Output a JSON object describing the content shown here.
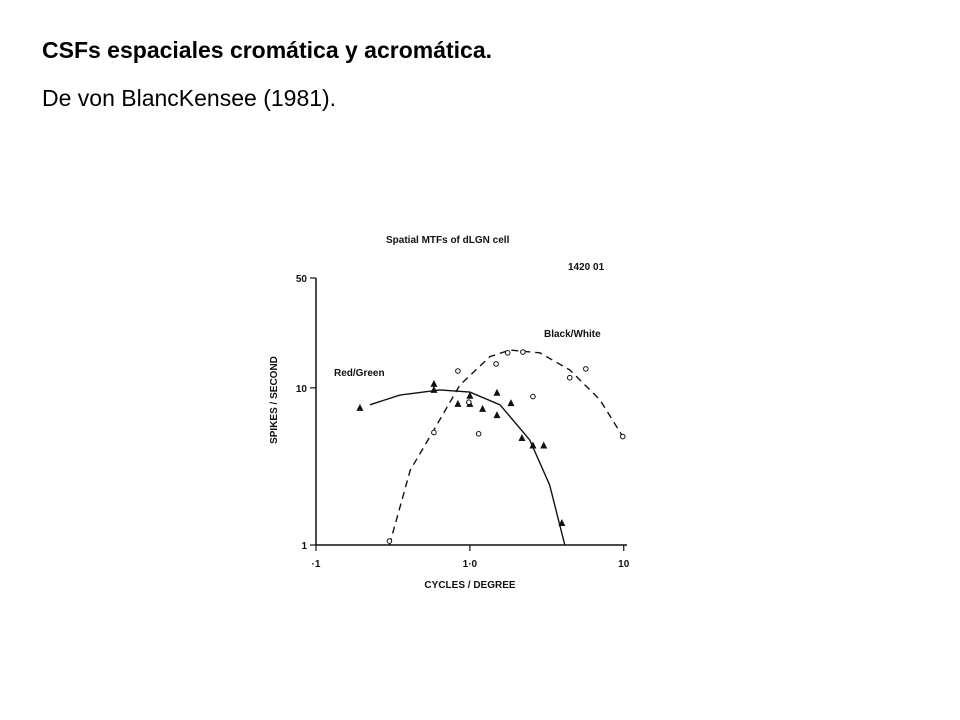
{
  "slide": {
    "title": "CSFs espaciales cromática y acromática.",
    "subtitle": "De von BlancKensee (1981)."
  },
  "chart_data": {
    "type": "scatter",
    "title": "Spatial MTFs of dLGN cell",
    "subtitle": "1420 01",
    "x_label": "CYCLES / DEGREE",
    "y_label": "SPIKES / SECOND",
    "xscale": "log",
    "yscale": "log",
    "xlim": [
      0.1,
      10.5
    ],
    "ylim": [
      1,
      50
    ],
    "xticks": [
      {
        "value": 0.1,
        "label": "·1"
      },
      {
        "value": 1,
        "label": "1·0"
      },
      10
    ],
    "yticks": [
      1,
      10,
      50
    ],
    "series": [
      {
        "name": "Red/Green",
        "color": "#111111",
        "marker": "triangle",
        "x": [
          0.193,
          0.584,
          0.584,
          0.836,
          1.0,
          1.0,
          1.21,
          1.5,
          1.5,
          1.85,
          2.18,
          2.57,
          3.02,
          3.96
        ],
        "values": [
          7.46,
          10.6,
          9.7,
          7.9,
          8.9,
          7.9,
          7.35,
          9.3,
          6.7,
          8.0,
          4.8,
          4.3,
          4.3,
          1.38
        ],
        "fit": {
          "dash": false,
          "x": [
            0.224,
            0.351,
            0.638,
            1.0,
            1.57,
            2.45,
            3.3,
            4.14
          ],
          "values": [
            7.8,
            9.0,
            9.7,
            9.4,
            7.8,
            4.66,
            2.41,
            1
          ]
        }
      },
      {
        "name": "Black/White",
        "color": "#111111",
        "marker": "circle",
        "x": [
          0.3,
          0.584,
          0.836,
          0.985,
          1.14,
          1.48,
          1.76,
          2.21,
          2.57,
          4.46,
          5.67,
          9.85
        ],
        "values": [
          1.06,
          5.2,
          12.8,
          8.1,
          5.1,
          14.2,
          16.7,
          16.9,
          8.8,
          11.6,
          13.2,
          4.9
        ],
        "fit": {
          "dash": true,
          "x": [
            0.3,
            0.41,
            0.584,
            0.86,
            1.35,
            1.82,
            2.85,
            4.46,
            7.0,
            9.85
          ],
          "values": [
            1.0,
            3.0,
            5.4,
            10.4,
            15.8,
            17.4,
            16.7,
            13.0,
            8.4,
            4.9
          ]
        }
      }
    ]
  }
}
